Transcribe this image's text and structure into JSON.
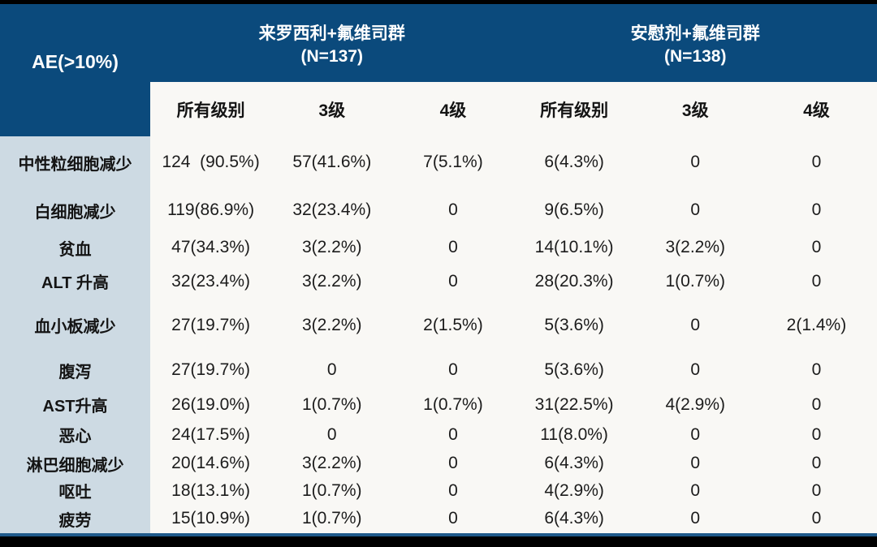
{
  "colors": {
    "header_bg": "#0B4A7C",
    "header_text": "#FFFFFF",
    "row_label_bg": "#CDDAE3",
    "body_bg": "#F9F8F5",
    "body_text": "#1C1C1C",
    "top_bottom_bar": "#000000",
    "bottom_accent_line": "#1F5A8B"
  },
  "table": {
    "corner_label": "AE(>10%)",
    "groups": [
      {
        "title": "来罗西利+氟维司群",
        "n": "(N=137)"
      },
      {
        "title": "安慰剂+氟维司群",
        "n": "(N=138)"
      }
    ],
    "subheaders": [
      "所有级别",
      "3级",
      "4级",
      "所有级别",
      "3级",
      "4级"
    ],
    "rows": [
      {
        "label": "中性粒细胞减少",
        "values": [
          "124  (90.5%)",
          "57(41.6%)",
          "7(5.1%)",
          "6(4.3%)",
          "0",
          "0"
        ]
      },
      {
        "label": "白细胞减少",
        "values": [
          "119(86.9%)",
          "32(23.4%)",
          "0",
          "9(6.5%)",
          "0",
          "0"
        ]
      },
      {
        "label": "贫血",
        "values": [
          "47(34.3%)",
          "3(2.2%)",
          "0",
          "14(10.1%)",
          "3(2.2%)",
          "0"
        ]
      },
      {
        "label": "ALT 升高",
        "values": [
          "32(23.4%)",
          "3(2.2%)",
          "0",
          "28(20.3%)",
          "1(0.7%)",
          "0"
        ]
      },
      {
        "label": "血小板减少",
        "values": [
          "27(19.7%)",
          "3(2.2%)",
          "2(1.5%)",
          "5(3.6%)",
          "0",
          "2(1.4%)"
        ]
      },
      {
        "label": "腹泻",
        "values": [
          "27(19.7%)",
          "0",
          "0",
          "5(3.6%)",
          "0",
          "0"
        ]
      },
      {
        "label": "AST升高",
        "values": [
          "26(19.0%)",
          "1(0.7%)",
          "1(0.7%)",
          "31(22.5%)",
          "4(2.9%)",
          "0"
        ]
      },
      {
        "label": "恶心",
        "values": [
          "24(17.5%)",
          "0",
          "0",
          "11(8.0%)",
          "0",
          "0"
        ]
      },
      {
        "label": "淋巴细胞减少",
        "values": [
          "20(14.6%)",
          "3(2.2%)",
          "0",
          "6(4.3%)",
          "0",
          "0"
        ]
      },
      {
        "label": "呕吐",
        "values": [
          "18(13.1%)",
          "1(0.7%)",
          "0",
          "4(2.9%)",
          "0",
          "0"
        ]
      },
      {
        "label": "疲劳",
        "values": [
          "15(10.9%)",
          "1(0.7%)",
          "0",
          "6(4.3%)",
          "0",
          "0"
        ]
      }
    ]
  }
}
